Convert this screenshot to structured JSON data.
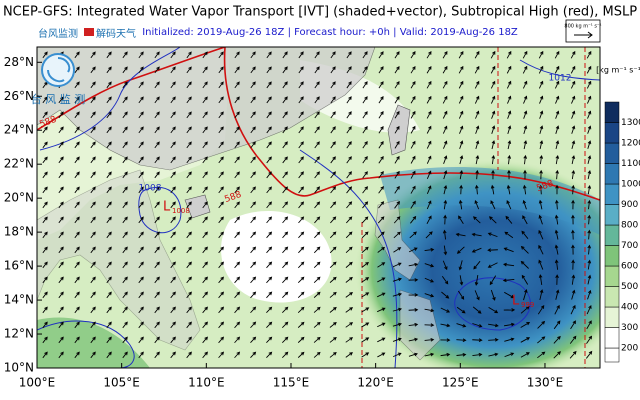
{
  "header": {
    "title": "NCEP-GFS: Integrated Water Vapor Transport [IVT] (shaded+vector), Subtropical High (red), MSLP",
    "info": "Initialized: 2019-Aug-26 18Z  |  Forecast hour: +0h  |  Valid: 2019-Aug-26 18Z",
    "logo_top": "台风监测",
    "logo_sub": "解码天气",
    "logo_caption": "台 风 监 测"
  },
  "map": {
    "xlim": [
      100,
      133.25
    ],
    "ylim": [
      10,
      28.9
    ],
    "xticks": [
      {
        "value": 100,
        "label": "100°E"
      },
      {
        "value": 105,
        "label": "105°E"
      },
      {
        "value": 110,
        "label": "110°E"
      },
      {
        "value": 115,
        "label": "115°E"
      },
      {
        "value": 120,
        "label": "120°E"
      },
      {
        "value": 125,
        "label": "125°E"
      },
      {
        "value": 130,
        "label": "130°E"
      }
    ],
    "yticks": [
      {
        "value": 10,
        "label": "10°N"
      },
      {
        "value": 12,
        "label": "12°N"
      },
      {
        "value": 14,
        "label": "14°N"
      },
      {
        "value": 16,
        "label": "16°N"
      },
      {
        "value": 18,
        "label": "18°N"
      },
      {
        "value": 20,
        "label": "20°N"
      },
      {
        "value": 22,
        "label": "22°N"
      },
      {
        "value": 24,
        "label": "24°N"
      },
      {
        "value": 26,
        "label": "26°N"
      },
      {
        "value": 28,
        "label": "28°N"
      }
    ],
    "subtropical_high_labels": [
      "588",
      "588",
      "588"
    ],
    "isobar_labels": [
      "1012",
      "1008"
    ],
    "lows": [
      {
        "label": "L",
        "value": 1008
      },
      {
        "label": "L",
        "value": 999
      }
    ]
  },
  "vector_key": {
    "label": "800 kg m⁻¹ s⁻¹"
  },
  "colorbar": {
    "unit": "[kg m⁻¹ s⁻¹]",
    "levels": [
      200,
      300,
      400,
      500,
      600,
      700,
      800,
      900,
      1000,
      1100,
      1200,
      1300
    ],
    "colors": [
      "#ffffff",
      "#e6f4d6",
      "#c9e7b1",
      "#a6d78f",
      "#7fc47a",
      "#64b79a",
      "#5aaec6",
      "#3f93c4",
      "#2f78b2",
      "#235d9c",
      "#1a4585",
      "#0f2c5e"
    ]
  }
}
